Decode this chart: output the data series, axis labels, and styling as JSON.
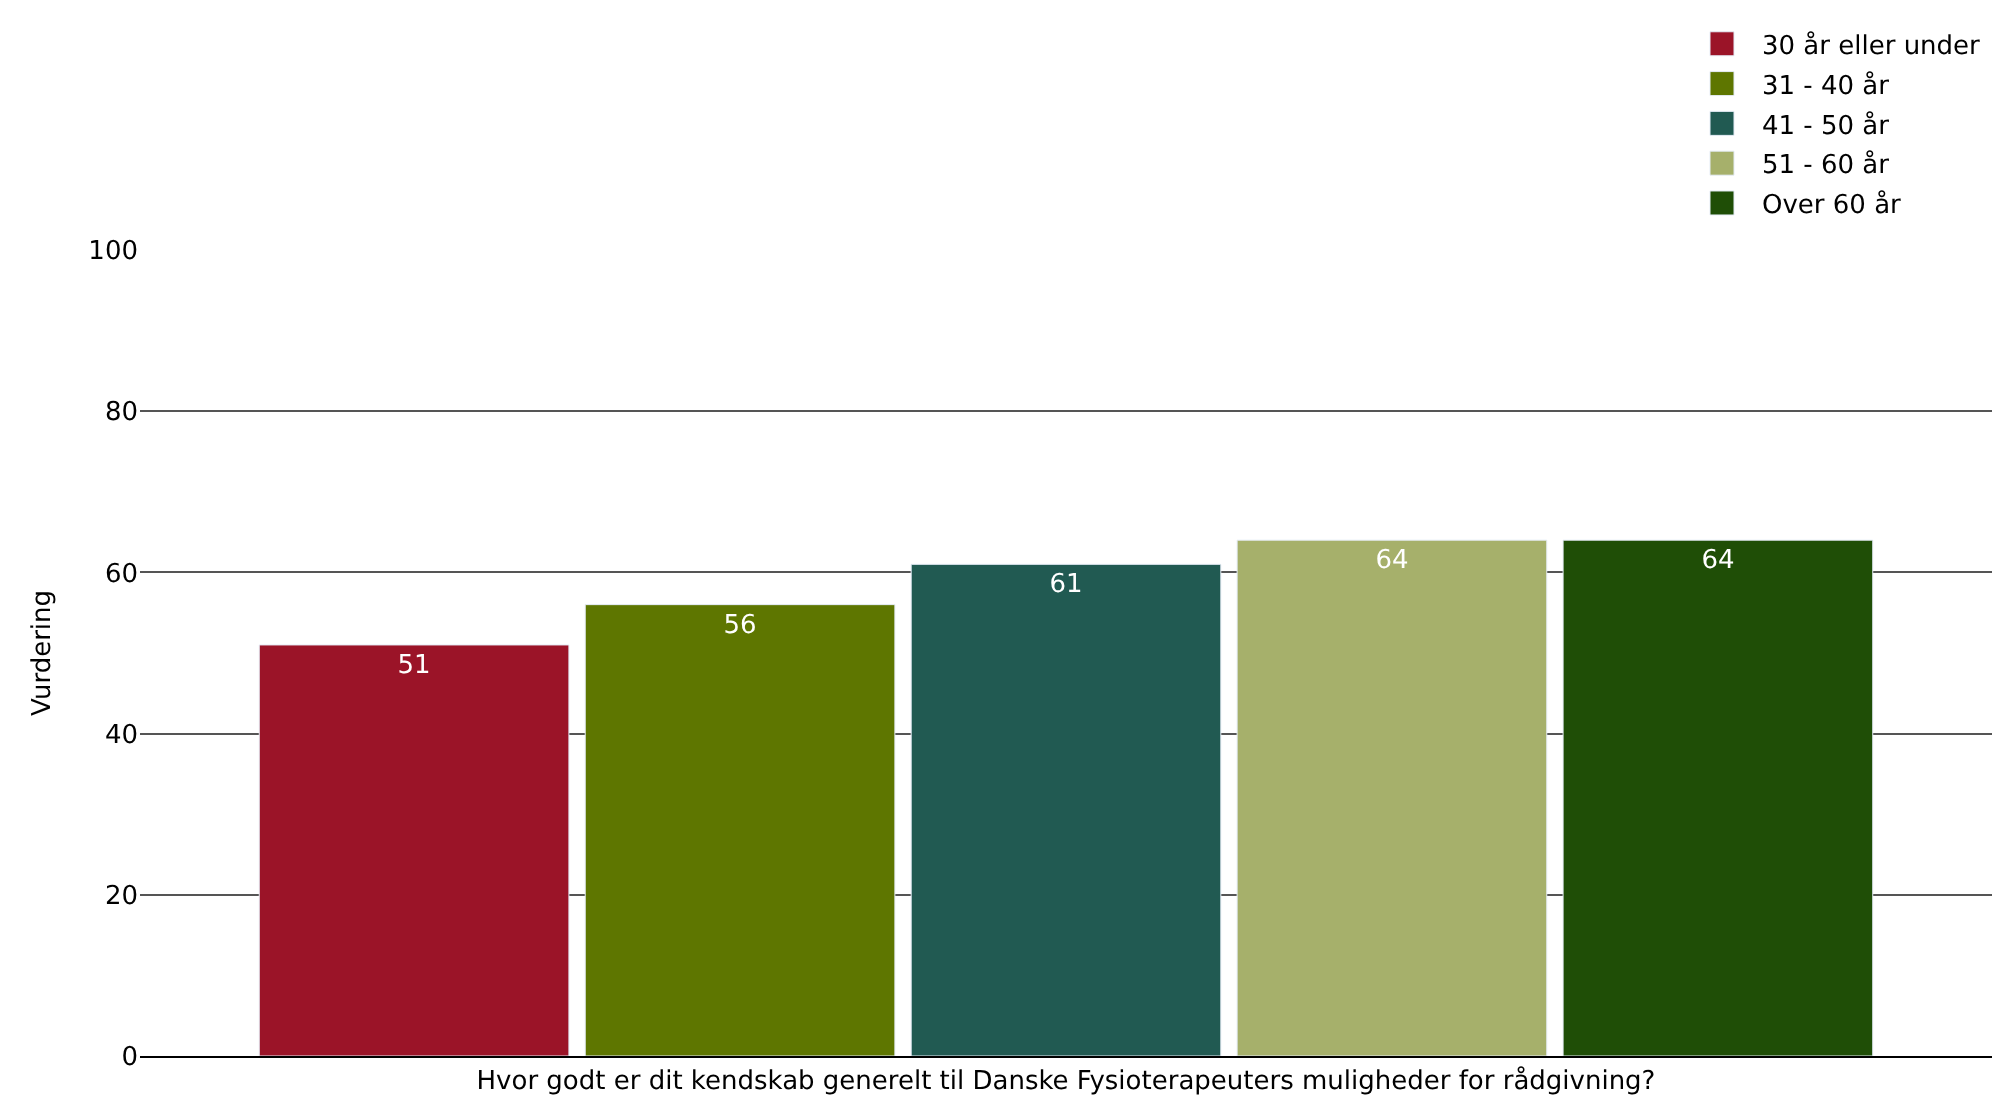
{
  "chart_data": {
    "type": "bar",
    "ylabel": "Vurdering",
    "categories": [
      "Hvor godt er dit kendskab generelt til Danske Fysioterapeuters muligheder for rådgivning?"
    ],
    "series": [
      {
        "name": "30 år eller under",
        "color": "#9b1428",
        "values": [
          51
        ]
      },
      {
        "name": "31 - 40 år",
        "color": "#5e7600",
        "values": [
          56
        ]
      },
      {
        "name": "41 - 50 år",
        "color": "#215a52",
        "values": [
          61
        ]
      },
      {
        "name": "51 - 60 år",
        "color": "#a6b06b",
        "values": [
          64
        ]
      },
      {
        "name": "Over 60 år",
        "color": "#1f4e06",
        "values": [
          64
        ]
      }
    ],
    "ylim": [
      0,
      100
    ],
    "yticks": [
      0,
      20,
      40,
      60,
      80,
      100
    ],
    "grid": "y",
    "legend": "top right",
    "data_labels": true
  }
}
